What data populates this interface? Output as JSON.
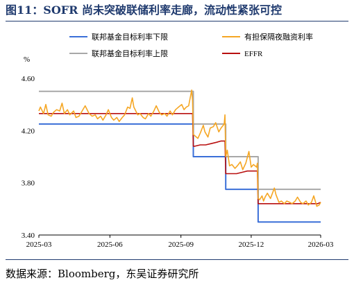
{
  "title": "图11：SOFR 尚未突破联储利率走廊，流动性紧张可控",
  "source": "数据来源：Bloomberg，东吴证券研究所",
  "chart_data": {
    "type": "line",
    "ylabel": "%",
    "ylim": [
      3.4,
      4.6
    ],
    "yticks": [
      "4.60",
      "4.20",
      "3.80",
      "3.40"
    ],
    "ytick_values": [
      4.6,
      4.2,
      3.8,
      3.4
    ],
    "xticks": [
      "2025-03",
      "2025-06",
      "2025-09",
      "2025-12",
      "2026-03"
    ],
    "xtick_values": [
      "2025-03-01",
      "2025-06-01",
      "2025-09-01",
      "2025-12-01",
      "2026-03-01"
    ],
    "legend_position": "top",
    "series": [
      {
        "name": "联邦基金目标利率下限",
        "color": "#3a6fd8",
        "step": true,
        "points": [
          [
            "2025-03-01",
            4.25
          ],
          [
            "2025-09-17",
            4.0
          ],
          [
            "2025-10-29",
            3.75
          ],
          [
            "2025-12-10",
            3.5
          ],
          [
            "2026-03-01",
            3.5
          ]
        ]
      },
      {
        "name": "有担保隔夜融资利率",
        "color": "#f5a623",
        "step": false,
        "points": [
          [
            "2025-03-01",
            4.35
          ],
          [
            "2025-03-03",
            4.38
          ],
          [
            "2025-03-07",
            4.33
          ],
          [
            "2025-03-10",
            4.4
          ],
          [
            "2025-03-13",
            4.32
          ],
          [
            "2025-03-17",
            4.31
          ],
          [
            "2025-03-20",
            4.34
          ],
          [
            "2025-03-24",
            4.36
          ],
          [
            "2025-03-28",
            4.35
          ],
          [
            "2025-03-31",
            4.41
          ],
          [
            "2025-04-03",
            4.33
          ],
          [
            "2025-04-07",
            4.36
          ],
          [
            "2025-04-10",
            4.32
          ],
          [
            "2025-04-15",
            4.35
          ],
          [
            "2025-04-18",
            4.3
          ],
          [
            "2025-04-22",
            4.31
          ],
          [
            "2025-04-25",
            4.34
          ],
          [
            "2025-04-30",
            4.39
          ],
          [
            "2025-05-05",
            4.33
          ],
          [
            "2025-05-09",
            4.31
          ],
          [
            "2025-05-13",
            4.32
          ],
          [
            "2025-05-16",
            4.29
          ],
          [
            "2025-05-20",
            4.31
          ],
          [
            "2025-05-23",
            4.28
          ],
          [
            "2025-05-27",
            4.32
          ],
          [
            "2025-05-30",
            4.36
          ],
          [
            "2025-06-03",
            4.3
          ],
          [
            "2025-06-06",
            4.28
          ],
          [
            "2025-06-10",
            4.3
          ],
          [
            "2025-06-13",
            4.27
          ],
          [
            "2025-06-17",
            4.3
          ],
          [
            "2025-06-20",
            4.32
          ],
          [
            "2025-06-24",
            4.38
          ],
          [
            "2025-06-27",
            4.37
          ],
          [
            "2025-06-30",
            4.45
          ],
          [
            "2025-07-02",
            4.38
          ],
          [
            "2025-07-07",
            4.32
          ],
          [
            "2025-07-10",
            4.33
          ],
          [
            "2025-07-14",
            4.3
          ],
          [
            "2025-07-17",
            4.29
          ],
          [
            "2025-07-21",
            4.33
          ],
          [
            "2025-07-24",
            4.31
          ],
          [
            "2025-07-28",
            4.35
          ],
          [
            "2025-07-31",
            4.39
          ],
          [
            "2025-08-04",
            4.34
          ],
          [
            "2025-08-07",
            4.32
          ],
          [
            "2025-08-11",
            4.33
          ],
          [
            "2025-08-14",
            4.31
          ],
          [
            "2025-08-18",
            4.35
          ],
          [
            "2025-08-21",
            4.32
          ],
          [
            "2025-08-25",
            4.36
          ],
          [
            "2025-08-29",
            4.38
          ],
          [
            "2025-09-02",
            4.4
          ],
          [
            "2025-09-05",
            4.36
          ],
          [
            "2025-09-08",
            4.38
          ],
          [
            "2025-09-11",
            4.39
          ],
          [
            "2025-09-15",
            4.51
          ],
          [
            "2025-09-16",
            4.43
          ],
          [
            "2025-09-17",
            4.17
          ],
          [
            "2025-09-19",
            4.16
          ],
          [
            "2025-09-23",
            4.14
          ],
          [
            "2025-09-26",
            4.18
          ],
          [
            "2025-09-30",
            4.24
          ],
          [
            "2025-10-02",
            4.19
          ],
          [
            "2025-10-06",
            4.15
          ],
          [
            "2025-10-09",
            4.22
          ],
          [
            "2025-10-13",
            4.23
          ],
          [
            "2025-10-16",
            4.26
          ],
          [
            "2025-10-20",
            4.19
          ],
          [
            "2025-10-23",
            4.22
          ],
          [
            "2025-10-27",
            4.25
          ],
          [
            "2025-10-28",
            4.32
          ],
          [
            "2025-10-29",
            4.0
          ],
          [
            "2025-10-31",
            4.05
          ],
          [
            "2025-11-03",
            3.93
          ],
          [
            "2025-11-06",
            3.94
          ],
          [
            "2025-11-10",
            3.91
          ],
          [
            "2025-11-13",
            3.93
          ],
          [
            "2025-11-17",
            3.96
          ],
          [
            "2025-11-20",
            3.9
          ],
          [
            "2025-11-24",
            3.95
          ],
          [
            "2025-11-28",
            4.04
          ],
          [
            "2025-12-01",
            3.92
          ],
          [
            "2025-12-04",
            3.94
          ],
          [
            "2025-12-08",
            3.92
          ],
          [
            "2025-12-09",
            3.95
          ],
          [
            "2025-12-10",
            3.68
          ],
          [
            "2025-12-12",
            3.67
          ],
          [
            "2025-12-15",
            3.7
          ],
          [
            "2025-12-17",
            3.66
          ],
          [
            "2025-12-19",
            3.69
          ],
          [
            "2025-12-22",
            3.72
          ],
          [
            "2025-12-26",
            3.68
          ],
          [
            "2025-12-31",
            3.76
          ],
          [
            "2026-01-02",
            3.71
          ],
          [
            "2026-01-06",
            3.65
          ],
          [
            "2026-01-09",
            3.66
          ],
          [
            "2026-01-13",
            3.64
          ],
          [
            "2026-01-16",
            3.66
          ],
          [
            "2026-01-20",
            3.65
          ],
          [
            "2026-01-23",
            3.64
          ],
          [
            "2026-01-27",
            3.66
          ],
          [
            "2026-01-30",
            3.69
          ],
          [
            "2026-02-03",
            3.65
          ],
          [
            "2026-02-06",
            3.64
          ],
          [
            "2026-02-10",
            3.66
          ],
          [
            "2026-02-13",
            3.63
          ],
          [
            "2026-02-17",
            3.65
          ],
          [
            "2026-02-20",
            3.7
          ],
          [
            "2026-02-24",
            3.62
          ],
          [
            "2026-02-27",
            3.63
          ],
          [
            "2026-03-01",
            3.65
          ]
        ]
      },
      {
        "name": "联邦基金目标利率上限",
        "color": "#a8a8a8",
        "step": true,
        "points": [
          [
            "2025-03-01",
            4.5
          ],
          [
            "2025-09-17",
            4.25
          ],
          [
            "2025-10-29",
            4.0
          ],
          [
            "2025-12-10",
            3.75
          ],
          [
            "2026-03-01",
            3.75
          ]
        ]
      },
      {
        "name": "EFFR",
        "color": "#b80f0f",
        "step": false,
        "points": [
          [
            "2025-03-01",
            4.33
          ],
          [
            "2025-09-16",
            4.33
          ],
          [
            "2025-09-17",
            4.08
          ],
          [
            "2025-09-19",
            4.08
          ],
          [
            "2025-09-26",
            4.09
          ],
          [
            "2025-10-03",
            4.09
          ],
          [
            "2025-10-10",
            4.1
          ],
          [
            "2025-10-17",
            4.11
          ],
          [
            "2025-10-23",
            4.12
          ],
          [
            "2025-10-28",
            4.12
          ],
          [
            "2025-10-29",
            3.87
          ],
          [
            "2025-11-05",
            3.87
          ],
          [
            "2025-11-12",
            3.87
          ],
          [
            "2025-11-19",
            3.88
          ],
          [
            "2025-11-26",
            3.89
          ],
          [
            "2025-12-03",
            3.89
          ],
          [
            "2025-12-09",
            3.89
          ],
          [
            "2025-12-10",
            3.64
          ],
          [
            "2025-12-20",
            3.64
          ],
          [
            "2026-01-10",
            3.64
          ],
          [
            "2026-02-01",
            3.64
          ],
          [
            "2026-02-25",
            3.64
          ],
          [
            "2026-03-01",
            3.65
          ]
        ]
      }
    ]
  }
}
